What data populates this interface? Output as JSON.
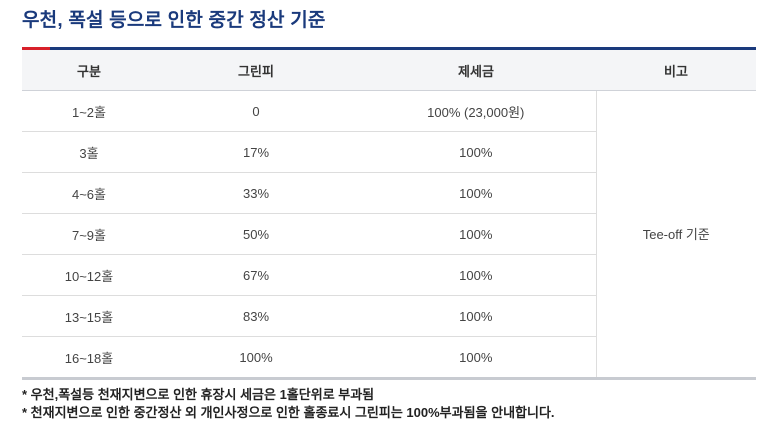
{
  "title": "우천, 폭설 등으로 인한 중간 정산 기준",
  "table": {
    "headers": [
      "구분",
      "그린피",
      "제세금",
      "비고"
    ],
    "rows": [
      [
        "1~2홀",
        "0",
        "100% (23,000원)"
      ],
      [
        "3홀",
        "17%",
        "100%"
      ],
      [
        "4~6홀",
        "33%",
        "100%"
      ],
      [
        "7~9홀",
        "50%",
        "100%"
      ],
      [
        "10~12홀",
        "67%",
        "100%"
      ],
      [
        "13~15홀",
        "83%",
        "100%"
      ],
      [
        "16~18홀",
        "100%",
        "100%"
      ]
    ],
    "note": "Tee-off 기준"
  },
  "notes": [
    "* 우천,폭설등 천재지변으로 인한 휴장시 세금은 1홀단위로 부과됨",
    "* 천재지변으로 인한 중간정산 외 개인사정으로 인한 홀종료시 그린피는 100%부과됨을 안내합니다."
  ],
  "colors": {
    "title": "#1a3a7c",
    "accent": "#d8202a",
    "header_bg": "#f4f5f7"
  }
}
